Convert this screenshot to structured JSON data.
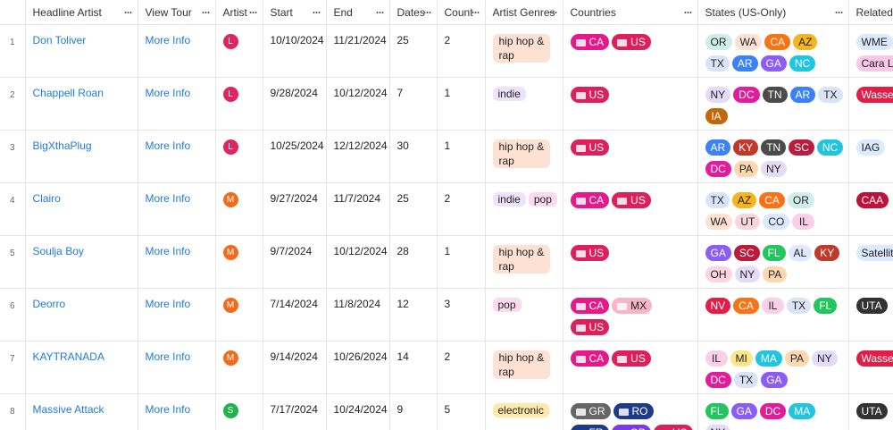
{
  "table": {
    "columns": [
      "Headline Artist",
      "View Tour",
      "Artist",
      "Start",
      "End",
      "Dates",
      "Count",
      "Artist Genres",
      "Countries",
      "States (US-Only)",
      "Related"
    ],
    "rows": [
      {
        "number": "1",
        "headline_artist": "Don Toliver",
        "view_tour": "More Info",
        "artist": {
          "text": "L",
          "color": "#e0245e"
        },
        "start": "10/10/2024",
        "end": "11/21/2024",
        "dates": "25",
        "count": "2",
        "genres": [
          {
            "text": "hip hop & rap",
            "color": "#fde2d4"
          }
        ],
        "countries": [
          {
            "text": "CA",
            "color": "#e5198a"
          },
          {
            "text": "US",
            "color": "#dd1f5c"
          }
        ],
        "states": [
          {
            "text": "OR",
            "color": "#cfeee9"
          },
          {
            "text": "WA",
            "color": "#fde2d4"
          },
          {
            "text": "CA",
            "color": "#f97316"
          },
          {
            "text": "AZ",
            "color": "#f5b521"
          },
          {
            "text": "TX",
            "color": "#dbe4f7"
          },
          {
            "text": "AR",
            "color": "#3b82f6"
          },
          {
            "text": "GA",
            "color": "#8b5cf6"
          },
          {
            "text": "NC",
            "color": "#22c5e0"
          }
        ],
        "related": [
          {
            "text": "WME",
            "color": "#dbeafe"
          },
          {
            "text": "Cara Le",
            "color": "#f9c8e6"
          }
        ]
      },
      {
        "number": "2",
        "headline_artist": "Chappell Roan",
        "view_tour": "More Info",
        "artist": {
          "text": "L",
          "color": "#e0245e"
        },
        "start": "9/28/2024",
        "end": "10/12/2024",
        "dates": "7",
        "count": "1",
        "genres": [
          {
            "text": "indie",
            "color": "#ede4fb"
          }
        ],
        "countries": [
          {
            "text": "US",
            "color": "#dd1f5c"
          }
        ],
        "states": [
          {
            "text": "NY",
            "color": "#e4dcf7"
          },
          {
            "text": "DC",
            "color": "#e11d9c"
          },
          {
            "text": "TN",
            "color": "#4b4b4b"
          },
          {
            "text": "AR",
            "color": "#3b82f6"
          },
          {
            "text": "TX",
            "color": "#dbe4f7"
          },
          {
            "text": "IA",
            "color": "#c2680b"
          }
        ],
        "related": [
          {
            "text": "Wasser",
            "color": "#e11d48"
          }
        ]
      },
      {
        "number": "3",
        "headline_artist": "BigXthaPlug",
        "view_tour": "More Info",
        "artist": {
          "text": "L",
          "color": "#e0245e"
        },
        "start": "10/25/2024",
        "end": "12/12/2024",
        "dates": "30",
        "count": "1",
        "genres": [
          {
            "text": "hip hop & rap",
            "color": "#fde2d4"
          }
        ],
        "countries": [
          {
            "text": "US",
            "color": "#dd1f5c"
          }
        ],
        "states": [
          {
            "text": "AR",
            "color": "#3b82f6"
          },
          {
            "text": "KY",
            "color": "#c0392b"
          },
          {
            "text": "TN",
            "color": "#4b4b4b"
          },
          {
            "text": "SC",
            "color": "#b91c3c"
          },
          {
            "text": "NC",
            "color": "#22c5e0"
          },
          {
            "text": "DC",
            "color": "#e11d9c"
          },
          {
            "text": "PA",
            "color": "#fcd7b0"
          },
          {
            "text": "NY",
            "color": "#e4dcf7"
          }
        ],
        "related": [
          {
            "text": "IAG",
            "color": "#dbeafe"
          }
        ]
      },
      {
        "number": "4",
        "headline_artist": "Clairo",
        "view_tour": "More Info",
        "artist": {
          "text": "M",
          "color": "#f26b1d"
        },
        "start": "9/27/2024",
        "end": "11/7/2024",
        "dates": "25",
        "count": "2",
        "genres": [
          {
            "text": "indie",
            "color": "#ede4fb"
          },
          {
            "text": "pop",
            "color": "#fbd9ef"
          }
        ],
        "countries": [
          {
            "text": "CA",
            "color": "#e5198a"
          },
          {
            "text": "US",
            "color": "#dd1f5c"
          }
        ],
        "states": [
          {
            "text": "TX",
            "color": "#dbe4f7"
          },
          {
            "text": "AZ",
            "color": "#f5b521"
          },
          {
            "text": "CA",
            "color": "#f97316"
          },
          {
            "text": "OR",
            "color": "#cfeee9"
          },
          {
            "text": "WA",
            "color": "#fde2d4"
          },
          {
            "text": "UT",
            "color": "#fbd5e0"
          },
          {
            "text": "CO",
            "color": "#dbeafe"
          },
          {
            "text": "IL",
            "color": "#fbcfe8"
          }
        ],
        "related": [
          {
            "text": "CAA",
            "color": "#be123c"
          }
        ]
      },
      {
        "number": "5",
        "headline_artist": "Soulja Boy",
        "view_tour": "More Info",
        "artist": {
          "text": "M",
          "color": "#f26b1d"
        },
        "start": "9/7/2024",
        "end": "10/12/2024",
        "dates": "28",
        "count": "1",
        "genres": [
          {
            "text": "hip hop & rap",
            "color": "#fde2d4"
          }
        ],
        "countries": [
          {
            "text": "US",
            "color": "#dd1f5c"
          }
        ],
        "states": [
          {
            "text": "GA",
            "color": "#8b5cf6"
          },
          {
            "text": "SC",
            "color": "#b91c3c"
          },
          {
            "text": "FL",
            "color": "#22c55e"
          },
          {
            "text": "AL",
            "color": "#e0e7ff"
          },
          {
            "text": "KY",
            "color": "#c0392b"
          },
          {
            "text": "OH",
            "color": "#fbd5e0"
          },
          {
            "text": "NY",
            "color": "#e4dcf7"
          },
          {
            "text": "PA",
            "color": "#fcd7b0"
          }
        ],
        "related": [
          {
            "text": "Satellit",
            "color": "#dbeafe"
          }
        ]
      },
      {
        "number": "6",
        "headline_artist": "Deorro",
        "view_tour": "More Info",
        "artist": {
          "text": "M",
          "color": "#f26b1d"
        },
        "start": "7/14/2024",
        "end": "11/8/2024",
        "dates": "12",
        "count": "3",
        "genres": [
          {
            "text": "pop",
            "color": "#fbd9ef"
          }
        ],
        "countries": [
          {
            "text": "CA",
            "color": "#e5198a"
          },
          {
            "text": "MX",
            "color": "#f7b6c8"
          },
          {
            "text": "US",
            "color": "#dd1f5c"
          }
        ],
        "states": [
          {
            "text": "NV",
            "color": "#e11d48"
          },
          {
            "text": "CA",
            "color": "#f97316"
          },
          {
            "text": "IL",
            "color": "#fbcfe8"
          },
          {
            "text": "TX",
            "color": "#dbe4f7"
          },
          {
            "text": "FL",
            "color": "#22c55e"
          }
        ],
        "related": [
          {
            "text": "UTA",
            "color": "#333333"
          }
        ]
      },
      {
        "number": "7",
        "headline_artist": "KAYTRANADA",
        "view_tour": "More Info",
        "artist": {
          "text": "M",
          "color": "#f26b1d"
        },
        "start": "9/14/2024",
        "end": "10/26/2024",
        "dates": "14",
        "count": "2",
        "genres": [
          {
            "text": "hip hop & rap",
            "color": "#fde2d4"
          }
        ],
        "countries": [
          {
            "text": "CA",
            "color": "#e5198a"
          },
          {
            "text": "US",
            "color": "#dd1f5c"
          }
        ],
        "states": [
          {
            "text": "IL",
            "color": "#fbcfe8"
          },
          {
            "text": "MI",
            "color": "#fde68a"
          },
          {
            "text": "MA",
            "color": "#22c5e0"
          },
          {
            "text": "PA",
            "color": "#fcd7b0"
          },
          {
            "text": "NY",
            "color": "#e4dcf7"
          },
          {
            "text": "DC",
            "color": "#e11d9c"
          },
          {
            "text": "TX",
            "color": "#dbe4f7"
          },
          {
            "text": "GA",
            "color": "#8b5cf6"
          }
        ],
        "related": [
          {
            "text": "Wasser",
            "color": "#e11d48"
          }
        ]
      },
      {
        "number": "8",
        "headline_artist": "Massive Attack",
        "view_tour": "More Info",
        "artist": {
          "text": "S",
          "color": "#22b14c"
        },
        "start": "7/17/2024",
        "end": "10/24/2024",
        "dates": "9",
        "count": "5",
        "genres": [
          {
            "text": "electronic",
            "color": "#fde9a9"
          }
        ],
        "countries": [
          {
            "text": "GR",
            "color": "#666666"
          },
          {
            "text": "RO",
            "color": "#1e3a8a"
          },
          {
            "text": "FR",
            "color": "#1e3a8a"
          },
          {
            "text": "GB",
            "color": "#7c3aed"
          },
          {
            "text": "US",
            "color": "#dd1f5c"
          }
        ],
        "states": [
          {
            "text": "FL",
            "color": "#22c55e"
          },
          {
            "text": "GA",
            "color": "#8b5cf6"
          },
          {
            "text": "DC",
            "color": "#e11d9c"
          },
          {
            "text": "MA",
            "color": "#22c5e0"
          },
          {
            "text": "NY",
            "color": "#e4dcf7"
          }
        ],
        "related": [
          {
            "text": "UTA",
            "color": "#333333"
          }
        ]
      }
    ]
  }
}
